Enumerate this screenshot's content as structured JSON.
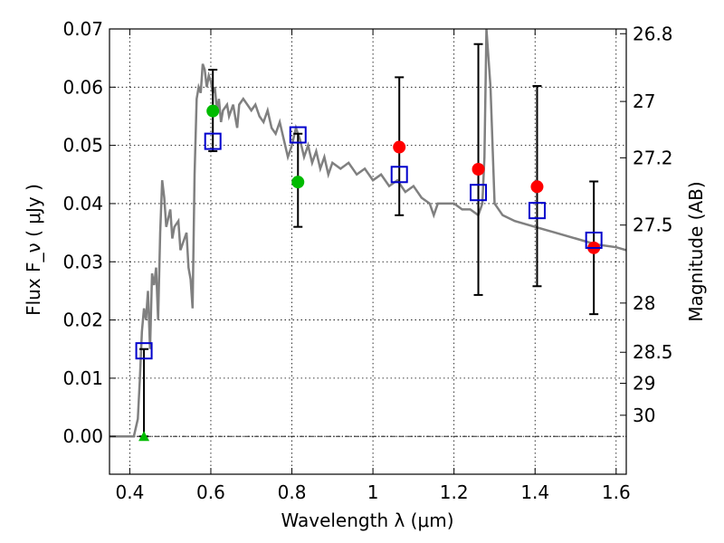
{
  "chart_data": {
    "type": "scatter",
    "xlabel": "Wavelength  λ (μm)",
    "ylabel": "Flux  F_ν  ( μJy )",
    "y2label": "Magnitude (AB)",
    "xlim": [
      0.35,
      1.625
    ],
    "ylim": [
      -0.0065,
      0.07
    ],
    "grid": true,
    "x_ticks": [
      0.4,
      0.6,
      0.8,
      1.0,
      1.2,
      1.4,
      1.6
    ],
    "x_tick_labels": [
      "0.4",
      "0.6",
      "0.8",
      "1",
      "1.2",
      "1.4",
      "1.6"
    ],
    "y_ticks": [
      0.0,
      0.01,
      0.02,
      0.03,
      0.04,
      0.05,
      0.06,
      0.07
    ],
    "y_tick_labels": [
      "0.00",
      "0.01",
      "0.02",
      "0.03",
      "0.04",
      "0.05",
      "0.06",
      "0.07"
    ],
    "mag_ticks": [
      26.8,
      27,
      27.2,
      27.5,
      28,
      28.5,
      29,
      30
    ],
    "mag_tick_labels": [
      "26.8",
      "27",
      "27.2",
      "27.5",
      "28",
      "28.5",
      "29",
      "30"
    ],
    "colors": {
      "sed": "#808080",
      "green": "#00bb00",
      "red": "#ff0000",
      "model": "#0000cc",
      "errorbar": "#000000"
    },
    "sed_model": {
      "x": [
        0.35,
        0.41,
        0.42,
        0.425,
        0.43,
        0.435,
        0.44,
        0.445,
        0.45,
        0.455,
        0.46,
        0.465,
        0.47,
        0.475,
        0.48,
        0.485,
        0.49,
        0.5,
        0.505,
        0.51,
        0.52,
        0.525,
        0.53,
        0.54,
        0.545,
        0.55,
        0.555,
        0.56,
        0.565,
        0.57,
        0.575,
        0.58,
        0.585,
        0.59,
        0.595,
        0.6,
        0.605,
        0.61,
        0.615,
        0.62,
        0.625,
        0.63,
        0.64,
        0.645,
        0.65,
        0.655,
        0.66,
        0.665,
        0.67,
        0.68,
        0.69,
        0.7,
        0.71,
        0.72,
        0.73,
        0.74,
        0.75,
        0.76,
        0.77,
        0.78,
        0.79,
        0.8,
        0.81,
        0.82,
        0.83,
        0.84,
        0.85,
        0.86,
        0.87,
        0.88,
        0.89,
        0.9,
        0.92,
        0.94,
        0.96,
        0.98,
        1.0,
        1.02,
        1.04,
        1.06,
        1.08,
        1.1,
        1.12,
        1.14,
        1.15,
        1.16,
        1.18,
        1.2,
        1.22,
        1.24,
        1.26,
        1.27,
        1.275,
        1.28,
        1.29,
        1.3,
        1.32,
        1.35,
        1.4,
        1.45,
        1.5,
        1.55,
        1.6,
        1.625
      ],
      "y": [
        0.0,
        0.0,
        0.003,
        0.01,
        0.018,
        0.022,
        0.02,
        0.025,
        0.015,
        0.028,
        0.026,
        0.029,
        0.02,
        0.035,
        0.044,
        0.041,
        0.036,
        0.039,
        0.034,
        0.036,
        0.037,
        0.032,
        0.033,
        0.035,
        0.029,
        0.027,
        0.022,
        0.045,
        0.058,
        0.06,
        0.059,
        0.064,
        0.063,
        0.06,
        0.062,
        0.061,
        0.059,
        0.06,
        0.056,
        0.058,
        0.054,
        0.056,
        0.057,
        0.055,
        0.056,
        0.057,
        0.055,
        0.053,
        0.057,
        0.058,
        0.057,
        0.056,
        0.057,
        0.055,
        0.054,
        0.056,
        0.053,
        0.052,
        0.054,
        0.051,
        0.048,
        0.05,
        0.053,
        0.051,
        0.048,
        0.05,
        0.047,
        0.049,
        0.046,
        0.048,
        0.045,
        0.047,
        0.046,
        0.047,
        0.045,
        0.046,
        0.044,
        0.045,
        0.043,
        0.044,
        0.042,
        0.043,
        0.041,
        0.04,
        0.038,
        0.04,
        0.04,
        0.04,
        0.039,
        0.039,
        0.038,
        0.04,
        0.048,
        0.07,
        0.06,
        0.04,
        0.038,
        0.037,
        0.036,
        0.035,
        0.034,
        0.033,
        0.0325,
        0.032
      ]
    },
    "observed": [
      {
        "x": 0.435,
        "y": 0.0,
        "marker": "triangle",
        "color": "green",
        "err_low": 0.0,
        "err_high": 0.015
      },
      {
        "x": 0.605,
        "y": 0.0559,
        "marker": "circle",
        "color": "green",
        "err_low": 0.049,
        "err_high": 0.063
      },
      {
        "x": 0.815,
        "y": 0.0437,
        "marker": "circle",
        "color": "green",
        "err_low": 0.036,
        "err_high": 0.052
      },
      {
        "x": 1.065,
        "y": 0.0497,
        "marker": "circle",
        "color": "red",
        "err_low": 0.038,
        "err_high": 0.0617
      },
      {
        "x": 1.26,
        "y": 0.0459,
        "marker": "circle",
        "color": "red",
        "err_low": 0.0243,
        "err_high": 0.0674
      },
      {
        "x": 1.405,
        "y": 0.0429,
        "marker": "circle",
        "color": "red",
        "err_low": 0.0258,
        "err_high": 0.0602
      },
      {
        "x": 1.545,
        "y": 0.0324,
        "marker": "circle",
        "color": "red",
        "err_low": 0.021,
        "err_high": 0.0438
      }
    ],
    "model_photometry": {
      "x": [
        0.435,
        0.605,
        0.815,
        1.065,
        1.26,
        1.405,
        1.545
      ],
      "y": [
        0.0147,
        0.0507,
        0.0518,
        0.045,
        0.0419,
        0.0388,
        0.0337
      ]
    }
  }
}
